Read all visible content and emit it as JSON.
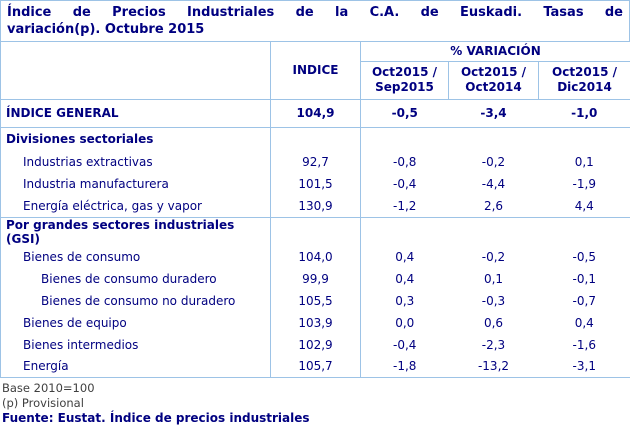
{
  "title": {
    "line1": "Índice de Precios Industriales de la C.A. de Euskadi. Tasas de",
    "line2": "variación(p). Octubre 2015"
  },
  "table": {
    "indice_header": "INDICE",
    "variacion_header": "% VARIACIÓN",
    "periods": [
      "Oct2015 /\nSep2015",
      "Oct2015 /\nOct2014",
      "Oct2015 /\nDic2014"
    ],
    "rows": [
      {
        "label": "ÍNDICE GENERAL",
        "values": [
          "104,9",
          "-0,5",
          "-3,4",
          "-1,0"
        ]
      },
      {
        "label": "Divisiones sectoriales",
        "values": [
          "",
          "",
          "",
          ""
        ]
      },
      {
        "label": "Industrias extractivas",
        "values": [
          "92,7",
          "-0,8",
          "-0,2",
          "0,1"
        ]
      },
      {
        "label": "Industria manufacturera",
        "values": [
          "101,5",
          "-0,4",
          "-4,4",
          "-1,9"
        ]
      },
      {
        "label": "Energía eléctrica, gas y vapor",
        "values": [
          "130,9",
          "-1,2",
          "2,6",
          "4,4"
        ]
      },
      {
        "label": "Por grandes sectores industriales (GSI)",
        "values": [
          "",
          "",
          "",
          ""
        ]
      },
      {
        "label": "Bienes de consumo",
        "values": [
          "104,0",
          "0,4",
          "-0,2",
          "-0,5"
        ]
      },
      {
        "label": "Bienes de consumo duradero",
        "values": [
          "99,9",
          "0,4",
          "0,1",
          "-0,1"
        ]
      },
      {
        "label": "Bienes de consumo no duradero",
        "values": [
          "105,5",
          "0,3",
          "-0,3",
          "-0,7"
        ]
      },
      {
        "label": "Bienes de equipo",
        "values": [
          "103,9",
          "0,0",
          "0,6",
          "0,4"
        ]
      },
      {
        "label": "Bienes intermedios",
        "values": [
          "102,9",
          "-0,4",
          "-2,3",
          "-1,6"
        ]
      },
      {
        "label": "Energía",
        "values": [
          "105,7",
          "-1,8",
          "-13,2",
          "-3,1"
        ]
      }
    ]
  },
  "footer": {
    "base": "Base 2010=100",
    "provisional": "(p) Provisional",
    "fuente": "Fuente: Eustat. Índice de precios industriales"
  },
  "colors": {
    "navy": "#000080",
    "border": "#9DC3E6",
    "footnote": "#3F3F3F"
  }
}
